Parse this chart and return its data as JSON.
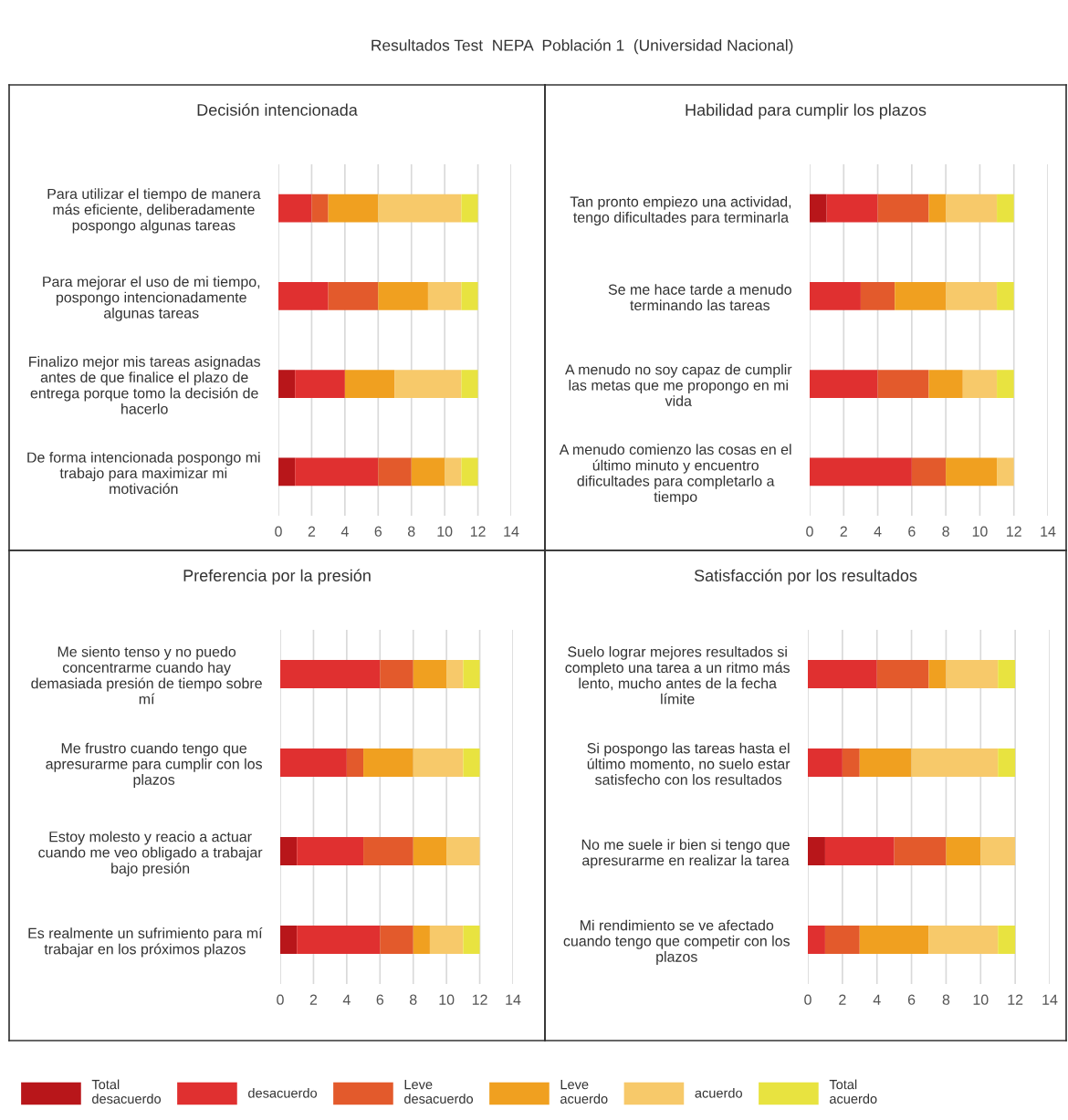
{
  "chart_data": [
    {
      "type": "bar",
      "orientation": "horizontal",
      "stacked": true,
      "title": "Decisión intencionada",
      "annotations": [
        "Resultados Test  NEPA  Población 1  (Universidad Nacional)"
      ],
      "legend": "bottom",
      "grid": "x",
      "xlim": [
        0,
        14
      ],
      "xticks": [
        0,
        2,
        4,
        6,
        8,
        10,
        12,
        14
      ],
      "categories": [
        "Para utilizar el tiempo de manera\nmás eficiente, deliberadamente\npospongo algunas tareas",
        "Para mejorar el uso de mi tiempo,\npospongo intencionadamente\nalgunas tareas",
        "Finalizo mejor mis tareas asignadas\nantes de que finalice el plazo de\nentrega porque tomo la decisión de\nhacerlo",
        "De forma intencionada pospongo mi\ntrabajo para maximizar mi\nmotivación"
      ],
      "series": [
        {
          "name": "Total\ndesacuerdo",
          "color": "#b8161a",
          "values": [
            0,
            0,
            1,
            1
          ]
        },
        {
          "name": "desacuerdo",
          "color": "#e03030",
          "values": [
            2,
            3,
            3,
            5
          ]
        },
        {
          "name": "Leve\ndesacuerdo",
          "color": "#e35a2c",
          "values": [
            1,
            3,
            0,
            2
          ]
        },
        {
          "name": "Leve\nacuerdo",
          "color": "#f0a020",
          "values": [
            3,
            3,
            3,
            2
          ]
        },
        {
          "name": "acuerdo",
          "color": "#f7c96a",
          "values": [
            5,
            2,
            4,
            1
          ]
        },
        {
          "name": "Total\nacuerdo",
          "color": "#e8e340",
          "values": [
            1,
            1,
            1,
            1
          ]
        }
      ]
    },
    {
      "type": "bar",
      "orientation": "horizontal",
      "stacked": true,
      "title": "Habilidad para cumplir los plazos",
      "grid": "x",
      "xlim": [
        0,
        14
      ],
      "xticks": [
        0,
        2,
        4,
        6,
        8,
        10,
        12,
        14
      ],
      "categories": [
        "Tan pronto empiezo una actividad,\ntengo dificultades para terminarla",
        "Se me hace tarde a menudo\nterminando las tareas",
        "A menudo no soy capaz de cumplir\nlas metas que me propongo en mi\nvida",
        "A menudo comienzo las cosas en el\núltimo minuto y encuentro\ndificultades para completarlo a\ntiempo"
      ],
      "series": [
        {
          "color": "#b8161a",
          "values": [
            1,
            0,
            0,
            0
          ]
        },
        {
          "color": "#e03030",
          "values": [
            3,
            3,
            4,
            6
          ]
        },
        {
          "color": "#e35a2c",
          "values": [
            3,
            2,
            3,
            2
          ]
        },
        {
          "color": "#f0a020",
          "values": [
            1,
            3,
            2,
            3
          ]
        },
        {
          "color": "#f7c96a",
          "values": [
            3,
            3,
            2,
            1
          ]
        },
        {
          "color": "#e8e340",
          "values": [
            1,
            1,
            1,
            0
          ]
        }
      ]
    },
    {
      "type": "bar",
      "orientation": "horizontal",
      "stacked": true,
      "title": "Preferencia por la presión",
      "grid": "x",
      "xlim": [
        0,
        14
      ],
      "xticks": [
        0,
        2,
        4,
        6,
        8,
        10,
        12,
        14
      ],
      "categories": [
        "Me siento tenso y no puedo\nconcentrarme cuando hay\ndemasiada presión de tiempo sobre\nmí",
        "Me frustro cuando tengo que\napresurarme para cumplir con los\nplazos",
        "Estoy molesto y reacio a actuar\ncuando me veo obligado a trabajar\nbajo presión",
        "Es realmente un sufrimiento para mí\ntrabajar en los próximos plazos"
      ],
      "series": [
        {
          "color": "#b8161a",
          "values": [
            0,
            0,
            1,
            1
          ]
        },
        {
          "color": "#e03030",
          "values": [
            6,
            4,
            4,
            5
          ]
        },
        {
          "color": "#e35a2c",
          "values": [
            2,
            1,
            3,
            2
          ]
        },
        {
          "color": "#f0a020",
          "values": [
            2,
            3,
            2,
            1
          ]
        },
        {
          "color": "#f7c96a",
          "values": [
            1,
            3,
            2,
            2
          ]
        },
        {
          "color": "#e8e340",
          "values": [
            1,
            1,
            0,
            1
          ]
        }
      ]
    },
    {
      "type": "bar",
      "orientation": "horizontal",
      "stacked": true,
      "title": "Satisfacción por los resultados",
      "grid": "x",
      "xlim": [
        0,
        14
      ],
      "xticks": [
        0,
        2,
        4,
        6,
        8,
        10,
        12,
        14
      ],
      "categories": [
        "Suelo lograr mejores resultados si\ncompleto una tarea a un ritmo más\nlento, mucho antes de la fecha\nlímite",
        "Si pospongo las tareas hasta el\núltimo momento, no suelo estar\nsatisfecho con los resultados",
        "No me suele ir bien si tengo que\napresurarme en realizar la tarea",
        "Mi rendimiento se ve afectado\ncuando tengo que competir con los\nplazos"
      ],
      "series": [
        {
          "color": "#b8161a",
          "values": [
            0,
            0,
            1,
            0
          ]
        },
        {
          "color": "#e03030",
          "values": [
            4,
            2,
            4,
            1
          ]
        },
        {
          "color": "#e35a2c",
          "values": [
            3,
            1,
            3,
            2
          ]
        },
        {
          "color": "#f0a020",
          "values": [
            1,
            3,
            2,
            4
          ]
        },
        {
          "color": "#f7c96a",
          "values": [
            3,
            5,
            2,
            4
          ]
        },
        {
          "color": "#e8e340",
          "values": [
            1,
            1,
            0,
            1
          ]
        }
      ]
    }
  ]
}
